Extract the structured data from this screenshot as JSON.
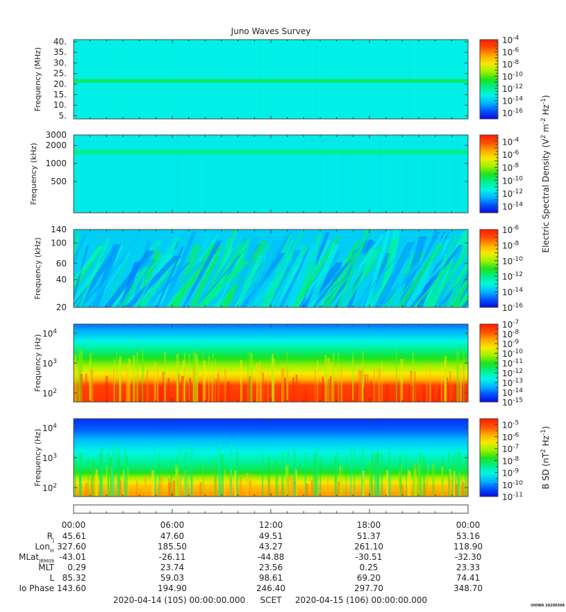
{
  "title": "Juno Waves Survey",
  "colors": {
    "colormap": [
      "#0b05d8",
      "#0050ff",
      "#00b4ff",
      "#00f5e6",
      "#00f08c",
      "#1ee11e",
      "#a0f000",
      "#f5eb00",
      "#ffaa00",
      "#ff5000",
      "#ff1e00"
    ],
    "frame": "#444444"
  },
  "chart_data": [
    {
      "type": "heatmap",
      "ylabel": "Frequency (MHz)",
      "yscale": "linear",
      "ylim": [
        3.5,
        41
      ],
      "yticks": [
        {
          "value": 40,
          "label": "40."
        },
        {
          "value": 35,
          "label": "35."
        },
        {
          "value": 30,
          "label": "30."
        },
        {
          "value": 25,
          "label": "25."
        },
        {
          "value": 20,
          "label": "20."
        },
        {
          "value": 15,
          "label": "15."
        },
        {
          "value": 10,
          "label": "10."
        },
        {
          "value": 5,
          "label": "5."
        }
      ],
      "colorbar": {
        "range_exp": [
          -17,
          -4
        ],
        "labels": [
          {
            "base": "10",
            "exp": "-4",
            "value": -4
          },
          {
            "base": "10",
            "exp": "-6",
            "value": -6
          },
          {
            "base": "10",
            "exp": "-8",
            "value": -8
          },
          {
            "base": "10",
            "exp": "-10",
            "value": -10
          },
          {
            "base": "10",
            "exp": "-12",
            "value": -12
          },
          {
            "base": "10",
            "exp": "-14",
            "value": -14
          },
          {
            "base": "10",
            "exp": "-16",
            "value": -16
          }
        ]
      },
      "background_level": -13.2,
      "bands": [
        {
          "y": 21.5,
          "halfwidth": 0.9,
          "level": -11.3
        }
      ]
    },
    {
      "type": "heatmap",
      "ylabel": "Frequency (kHz)",
      "yscale": "log",
      "ylim": [
        150,
        3000
      ],
      "yticks": [
        {
          "value": 3000,
          "label": "3000"
        },
        {
          "value": 2000,
          "label": "2000"
        },
        {
          "value": 1000,
          "label": "1000"
        },
        {
          "value": 500,
          "label": "500"
        }
      ],
      "colorbar": {
        "range_exp": [
          -15,
          -3
        ],
        "labels": [
          {
            "base": "10",
            "exp": "-4",
            "value": -4
          },
          {
            "base": "10",
            "exp": "-6",
            "value": -6
          },
          {
            "base": "10",
            "exp": "-8",
            "value": -8
          },
          {
            "base": "10",
            "exp": "-10",
            "value": -10
          },
          {
            "base": "10",
            "exp": "-12",
            "value": -12
          },
          {
            "base": "10",
            "exp": "-14",
            "value": -14
          }
        ]
      },
      "background_level": -11.6,
      "bands": [
        {
          "y": 1550,
          "halfwidth": 0.04,
          "level": -10.2
        }
      ]
    },
    {
      "type": "heatmap",
      "ylabel": "Frequency (kHz)",
      "yscale": "log",
      "ylim": [
        20,
        140
      ],
      "yticks": [
        {
          "value": 140,
          "label": "140"
        },
        {
          "value": 100,
          "label": "100"
        },
        {
          "value": 60,
          "label": "60"
        },
        {
          "value": 40,
          "label": "40"
        },
        {
          "value": 20,
          "label": "20"
        }
      ],
      "colorbar": {
        "range_exp": [
          -16,
          -6
        ],
        "labels": [
          {
            "base": "10",
            "exp": "-6",
            "value": -6
          },
          {
            "base": "10",
            "exp": "-8",
            "value": -8
          },
          {
            "base": "10",
            "exp": "-10",
            "value": -10
          },
          {
            "base": "10",
            "exp": "-12",
            "value": -12
          },
          {
            "base": "10",
            "exp": "-14",
            "value": -14
          },
          {
            "base": "10",
            "exp": "-16",
            "value": -16
          }
        ]
      },
      "background_level": -13.6
    },
    {
      "type": "heatmap",
      "ylabel": "Frequency (Hz)",
      "yscale": "log",
      "ylim": [
        50,
        20000
      ],
      "yticks": [
        {
          "value": 10000,
          "base": "10",
          "exp": "4"
        },
        {
          "value": 1000,
          "base": "10",
          "exp": "3"
        },
        {
          "value": 100,
          "base": "10",
          "exp": "2"
        }
      ],
      "colorbar": {
        "range_exp": [
          -15,
          -7
        ],
        "labels": [
          {
            "base": "10",
            "exp": "-7",
            "value": -7
          },
          {
            "base": "10",
            "exp": "-8",
            "value": -8
          },
          {
            "base": "10",
            "exp": "-9",
            "value": -9
          },
          {
            "base": "10",
            "exp": "-10",
            "value": -10
          },
          {
            "base": "10",
            "exp": "-11",
            "value": -11
          },
          {
            "base": "10",
            "exp": "-12",
            "value": -12
          },
          {
            "base": "10",
            "exp": "-13",
            "value": -13
          },
          {
            "base": "10",
            "exp": "-14",
            "value": -14
          },
          {
            "base": "10",
            "exp": "-15",
            "value": -15
          }
        ]
      },
      "level_profile": [
        {
          "f": 50,
          "level": -7.3
        },
        {
          "f": 180,
          "level": -7.6
        },
        {
          "f": 300,
          "level": -8.8
        },
        {
          "f": 700,
          "level": -10.0
        },
        {
          "f": 1500,
          "level": -11.0
        },
        {
          "f": 4000,
          "level": -12.2
        },
        {
          "f": 8000,
          "level": -13.0
        },
        {
          "f": 20000,
          "level": -13.9
        }
      ]
    },
    {
      "type": "heatmap",
      "ylabel": "Frequency (Hz)",
      "yscale": "log",
      "ylim": [
        50,
        20000
      ],
      "yticks": [
        {
          "value": 10000,
          "base": "10",
          "exp": "4"
        },
        {
          "value": 1000,
          "base": "10",
          "exp": "3"
        },
        {
          "value": 100,
          "base": "10",
          "exp": "2"
        }
      ],
      "colorbar": {
        "range_exp": [
          -11,
          -4.5
        ],
        "labels": [
          {
            "base": "10",
            "exp": "-5",
            "value": -5
          },
          {
            "base": "10",
            "exp": "-6",
            "value": -6
          },
          {
            "base": "10",
            "exp": "-7",
            "value": -7
          },
          {
            "base": "10",
            "exp": "-8",
            "value": -8
          },
          {
            "base": "10",
            "exp": "-9",
            "value": -9
          },
          {
            "base": "10",
            "exp": "-10",
            "value": -10
          },
          {
            "base": "10",
            "exp": "-11",
            "value": -11
          }
        ]
      },
      "level_profile": [
        {
          "f": 50,
          "level": -5.6
        },
        {
          "f": 120,
          "level": -6.1
        },
        {
          "f": 200,
          "level": -6.9
        },
        {
          "f": 350,
          "level": -7.9
        },
        {
          "f": 700,
          "level": -8.5
        },
        {
          "f": 1500,
          "level": -9.0
        },
        {
          "f": 4000,
          "level": -9.6
        },
        {
          "f": 8000,
          "level": -10.2
        },
        {
          "f": 20000,
          "level": -10.6
        }
      ]
    }
  ],
  "colorbar_titles": {
    "electric": {
      "text": "Electric Spectral Density (V",
      "sup1": "2",
      "mid": " m",
      "sup2": "-2",
      "mid2": " Hz",
      "sup3": "-1",
      "end": ")"
    },
    "magnetic": {
      "text": "B SD (nT",
      "sup1": "2",
      "mid": " Hz",
      "sup2": "-1",
      "end": ")"
    }
  },
  "time_axis": {
    "labels": [
      "00:00",
      "06:00",
      "12:00",
      "18:00",
      "00:00"
    ],
    "major_hours": [
      0,
      6,
      12,
      18,
      24
    ],
    "hours_span": 24
  },
  "ephemeris": {
    "rows": [
      {
        "label": "R",
        "sub": "J",
        "values": [
          "45.61",
          "47.60",
          "49.51",
          "51.37",
          "53.16"
        ]
      },
      {
        "label": "Lon",
        "sub": "III",
        "values": [
          "327.60",
          "185.50",
          "43.27",
          "261.10",
          "118.90"
        ]
      },
      {
        "label": "MLat",
        "sub": "JRM09",
        "values": [
          "-43.01",
          "-26.11",
          "-44.88",
          "-30.51",
          "-32.30"
        ]
      },
      {
        "label": "MLT",
        "sub": "",
        "values": [
          "0.29",
          "23.74",
          "23.56",
          "0.25",
          "23.33"
        ]
      },
      {
        "label": "L",
        "sub": "",
        "values": [
          "85.32",
          "59.03",
          "98.61",
          "69.20",
          "74.41"
        ]
      },
      {
        "label": "Io Phase",
        "sub": "",
        "values": [
          "143.60",
          "194.90",
          "246.40",
          "297.70",
          "348.70"
        ]
      }
    ]
  },
  "footer": {
    "start": "2020-04-14 (105) 00:00:00.000",
    "frame": "SCET",
    "end": "2020-04-15 (106) 00:00:00.000",
    "stamp": "UIOWA 20200308"
  }
}
